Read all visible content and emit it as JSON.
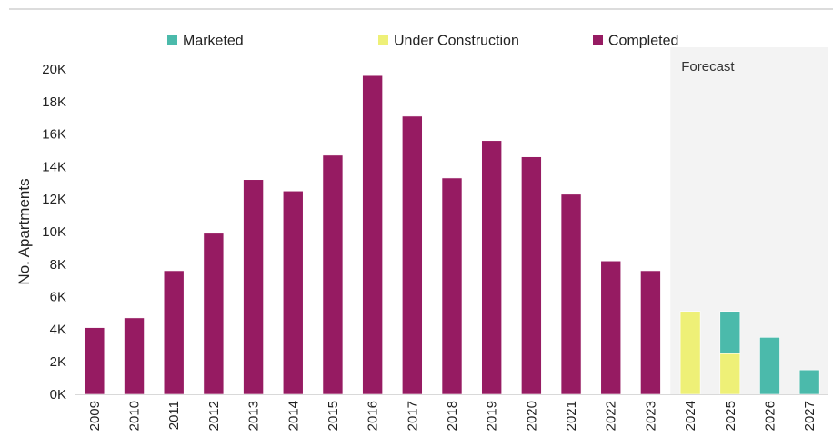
{
  "chart_data": {
    "type": "bar",
    "stacked": true,
    "title": "",
    "xlabel": "",
    "ylabel": "No. Apartments",
    "ylim": [
      0,
      20000
    ],
    "yticks": [
      {
        "value": 0,
        "label": "0K"
      },
      {
        "value": 2000,
        "label": "2K"
      },
      {
        "value": 4000,
        "label": "4K"
      },
      {
        "value": 6000,
        "label": "6K"
      },
      {
        "value": 8000,
        "label": "8K"
      },
      {
        "value": 10000,
        "label": "10K"
      },
      {
        "value": 12000,
        "label": "12K"
      },
      {
        "value": 14000,
        "label": "14K"
      },
      {
        "value": 16000,
        "label": "16K"
      },
      {
        "value": 18000,
        "label": "18K"
      },
      {
        "value": 20000,
        "label": "20K"
      }
    ],
    "categories": [
      "2009",
      "2010",
      "2011",
      "2012",
      "2013",
      "2014",
      "2015",
      "2016",
      "2017",
      "2018",
      "2019",
      "2020",
      "2021",
      "2022",
      "2023",
      "2024",
      "2025",
      "2026",
      "2027"
    ],
    "series": [
      {
        "name": "Completed",
        "color": "#961b62",
        "values": [
          4100,
          4700,
          7600,
          9900,
          13200,
          12500,
          14700,
          19600,
          17100,
          13300,
          15600,
          14600,
          12300,
          8200,
          7600,
          0,
          0,
          0,
          0
        ]
      },
      {
        "name": "Under Construction",
        "color": "#eef077",
        "values": [
          0,
          0,
          0,
          0,
          0,
          0,
          0,
          0,
          0,
          0,
          0,
          0,
          0,
          0,
          0,
          5100,
          2500,
          0,
          0
        ]
      },
      {
        "name": "Marketed",
        "color": "#4bbaab",
        "values": [
          0,
          0,
          0,
          0,
          0,
          0,
          0,
          0,
          0,
          0,
          0,
          0,
          0,
          0,
          0,
          0,
          2600,
          3500,
          1500
        ]
      }
    ],
    "legend": {
      "placement": "top",
      "items": [
        {
          "name": "Marketed",
          "color": "#4bbaab"
        },
        {
          "name": "Under Construction",
          "color": "#eef077"
        },
        {
          "name": "Completed",
          "color": "#961b62"
        }
      ]
    },
    "forecast_region": {
      "label": "Forecast",
      "from_category": "2024",
      "to_category": "2027",
      "color": "#f3f3f3"
    },
    "grid": false
  }
}
